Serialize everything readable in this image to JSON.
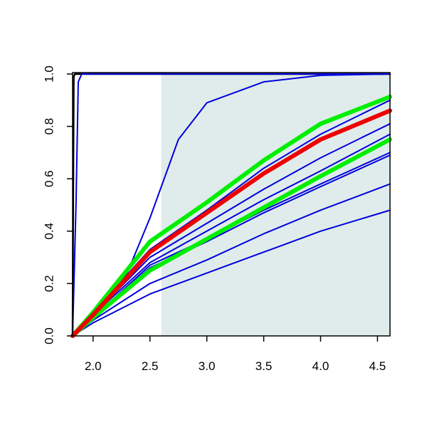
{
  "chart_data": {
    "type": "line",
    "xlim": [
      1.82,
      4.61
    ],
    "ylim": [
      0,
      1
    ],
    "xticks": [
      {
        "value": 2.0,
        "label": "2.0"
      },
      2.5,
      {
        "value": 3.0,
        "label": "3.0"
      },
      3.5,
      {
        "value": 4.0,
        "label": "4.0"
      },
      4.5
    ],
    "yticks": [
      {
        "value": 0,
        "label": "0.0"
      },
      0.2,
      0.4,
      0.6,
      0.8,
      {
        "value": 1,
        "label": "1.0"
      }
    ],
    "shaded_region": {
      "xlim": [
        2.6,
        4.61
      ],
      "color": "#dfeceb"
    },
    "series": [
      {
        "color": "#000000",
        "width": 2.5,
        "x": [
          1.82,
          1.83,
          1.84,
          4.61
        ],
        "values": [
          0,
          0.99,
          1,
          1
        ]
      },
      {
        "color": "#0000dd",
        "width": 2,
        "x": [
          1.82,
          1.85,
          1.87,
          1.9,
          4.61
        ],
        "values": [
          0,
          0.5,
          0.97,
          1,
          1
        ]
      },
      {
        "color": "#0000dd",
        "width": 2,
        "x": [
          1.82,
          2.0,
          2.3,
          2.5,
          2.6,
          2.75,
          3.0,
          3.5,
          4.0,
          4.61
        ],
        "values": [
          0,
          0.07,
          0.24,
          0.45,
          0.57,
          0.75,
          0.89,
          0.97,
          0.995,
          1
        ]
      },
      {
        "color": "#0000dd",
        "width": 2,
        "x": [
          1.82,
          2.0,
          2.5,
          3.0,
          3.5,
          4.0,
          4.61
        ],
        "values": [
          0,
          0.09,
          0.33,
          0.48,
          0.64,
          0.77,
          0.9
        ]
      },
      {
        "color": "#0000dd",
        "width": 2,
        "x": [
          1.82,
          2.0,
          2.5,
          3.0,
          3.5,
          4.0,
          4.61
        ],
        "values": [
          0,
          0.08,
          0.3,
          0.43,
          0.56,
          0.68,
          0.81
        ]
      },
      {
        "color": "#0000dd",
        "width": 2,
        "x": [
          1.82,
          2.0,
          2.5,
          3.0,
          3.5,
          4.0,
          4.61
        ],
        "values": [
          0,
          0.08,
          0.28,
          0.4,
          0.52,
          0.63,
          0.77
        ]
      },
      {
        "color": "#0000dd",
        "width": 2,
        "x": [
          1.82,
          2.0,
          2.5,
          3.0,
          3.5,
          4.0,
          4.61
        ],
        "values": [
          0,
          0.07,
          0.27,
          0.37,
          0.48,
          0.58,
          0.7
        ]
      },
      {
        "color": "#0000dd",
        "width": 2,
        "x": [
          1.82,
          2.0,
          2.5,
          3.0,
          3.5,
          4.0,
          4.61
        ],
        "values": [
          0,
          0.07,
          0.26,
          0.36,
          0.47,
          0.57,
          0.69
        ]
      },
      {
        "color": "#0000dd",
        "width": 2,
        "x": [
          1.82,
          2.0,
          2.5,
          3.0,
          3.5,
          4.0,
          4.61
        ],
        "values": [
          0,
          0.06,
          0.2,
          0.29,
          0.39,
          0.48,
          0.58
        ]
      },
      {
        "color": "#0000dd",
        "width": 2,
        "x": [
          1.82,
          2.0,
          2.5,
          3.0,
          3.5,
          4.0,
          4.61
        ],
        "values": [
          0,
          0.05,
          0.16,
          0.24,
          0.32,
          0.4,
          0.48
        ]
      },
      {
        "color": "#00ee00",
        "width": 6,
        "x": [
          1.82,
          2.0,
          2.5,
          3.0,
          3.5,
          4.0,
          4.61
        ],
        "values": [
          0,
          0.09,
          0.36,
          0.51,
          0.67,
          0.81,
          0.913
        ]
      },
      {
        "color": "#00ee00",
        "width": 6,
        "x": [
          1.82,
          2.0,
          2.5,
          3.0,
          3.5,
          4.0,
          4.61
        ],
        "values": [
          0,
          0.07,
          0.25,
          0.37,
          0.49,
          0.61,
          0.75
        ]
      },
      {
        "color": "#ee0000",
        "width": 6,
        "x": [
          1.82,
          2.0,
          2.5,
          3.0,
          3.5,
          4.0,
          4.61
        ],
        "values": [
          0,
          0.08,
          0.32,
          0.47,
          0.62,
          0.75,
          0.86
        ]
      }
    ]
  }
}
